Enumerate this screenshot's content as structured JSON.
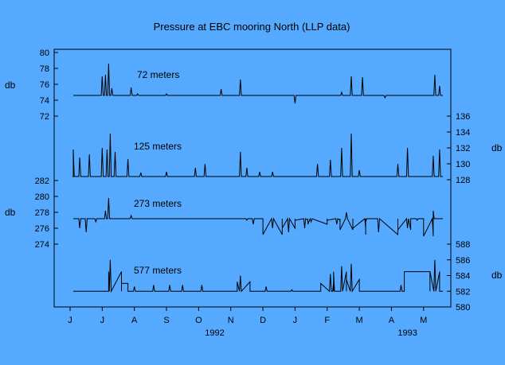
{
  "chart_data": {
    "type": "line",
    "title": "Pressure at EBC mooring North (LLP data)",
    "x_axis": {
      "tick_labels": [
        "J",
        "J",
        "A",
        "S",
        "O",
        "N",
        "D",
        "J",
        "F",
        "M",
        "A",
        "M"
      ],
      "year_labels": [
        {
          "label": "1992",
          "month_index": 4
        },
        {
          "label": "1993",
          "month_index": 10
        }
      ],
      "range_months": [
        0,
        11.7
      ]
    },
    "left_unit_labels": [
      "db",
      "db"
    ],
    "right_unit_labels": [
      "db",
      "db"
    ],
    "panels": [
      {
        "name": "72 meters",
        "axis_side": "left",
        "ticks": [
          80,
          78,
          76,
          74,
          72
        ],
        "tick_range": [
          72,
          80
        ],
        "baseline": 74.6,
        "spikes": [
          [
            1.0,
            77.0
          ],
          [
            1.1,
            77.2
          ],
          [
            1.2,
            78.6
          ],
          [
            1.3,
            75.5
          ],
          [
            1.9,
            75.6
          ],
          [
            2.1,
            74.8
          ],
          [
            3.0,
            74.8
          ],
          [
            4.7,
            75.4
          ],
          [
            5.3,
            76.6
          ],
          [
            7.0,
            73.6
          ],
          [
            8.45,
            75.0
          ],
          [
            8.75,
            77.0
          ],
          [
            9.1,
            76.9
          ],
          [
            9.8,
            74.3
          ],
          [
            11.35,
            77.2
          ],
          [
            11.5,
            75.8
          ]
        ],
        "steps": []
      },
      {
        "name": "125 meters",
        "axis_side": "right",
        "ticks": [
          136,
          134,
          132,
          130,
          128
        ],
        "tick_range": [
          128,
          136
        ],
        "baseline": 128.4,
        "spikes": [
          [
            0.1,
            131.8
          ],
          [
            0.3,
            130.8
          ],
          [
            0.6,
            131.2
          ],
          [
            1.0,
            132.0
          ],
          [
            1.15,
            131.8
          ],
          [
            1.25,
            133.8
          ],
          [
            1.4,
            131.5
          ],
          [
            1.8,
            130.6
          ],
          [
            2.2,
            128.9
          ],
          [
            3.0,
            129.0
          ],
          [
            3.9,
            129.5
          ],
          [
            4.2,
            130.0
          ],
          [
            5.3,
            131.5
          ],
          [
            5.5,
            129.5
          ],
          [
            5.9,
            129.0
          ],
          [
            6.3,
            129.0
          ],
          [
            7.7,
            130.0
          ],
          [
            8.1,
            130.5
          ],
          [
            8.45,
            132.0
          ],
          [
            8.75,
            133.8
          ],
          [
            9.0,
            129.2
          ],
          [
            10.2,
            130.0
          ],
          [
            10.5,
            132.0
          ],
          [
            11.3,
            131.0
          ],
          [
            11.5,
            131.8
          ]
        ],
        "steps": []
      },
      {
        "name": "273 meters",
        "axis_side": "left",
        "ticks": [
          282,
          280,
          278,
          276,
          274
        ],
        "tick_range": [
          274,
          282
        ],
        "baseline": 277.2,
        "spikes": [
          [
            0.3,
            276.0
          ],
          [
            0.5,
            275.5
          ],
          [
            0.8,
            276.8
          ],
          [
            1.1,
            278.2
          ],
          [
            1.2,
            279.8
          ],
          [
            1.9,
            277.6
          ],
          [
            5.5,
            277.0
          ],
          [
            5.7,
            276.5
          ],
          [
            6.3,
            276.0
          ],
          [
            6.8,
            275.5
          ],
          [
            7.3,
            276.0
          ],
          [
            7.5,
            276.8
          ],
          [
            8.3,
            276.5
          ],
          [
            8.6,
            278.0
          ],
          [
            9.2,
            276.8
          ],
          [
            9.6,
            275.5
          ],
          [
            10.5,
            276.0
          ],
          [
            10.8,
            277.0
          ],
          [
            11.3,
            278.2
          ]
        ],
        "steps": [
          [
            6.0,
            6.6,
            275.2
          ],
          [
            6.6,
            7.0,
            276.0
          ],
          [
            7.0,
            7.4,
            277.0
          ],
          [
            7.4,
            8.0,
            276.5
          ],
          [
            8.0,
            8.4,
            277.0
          ],
          [
            8.4,
            8.8,
            275.8
          ],
          [
            8.8,
            9.2,
            276.0
          ],
          [
            9.2,
            10.2,
            275.2
          ],
          [
            10.2,
            10.6,
            275.8
          ],
          [
            10.6,
            11.0,
            277.2
          ],
          [
            11.0,
            11.3,
            275.0
          ]
        ]
      },
      {
        "name": "577 meters",
        "axis_side": "right",
        "ticks": [
          588,
          586,
          584,
          582,
          580
        ],
        "tick_range": [
          580,
          588
        ],
        "baseline": 582.0,
        "spikes": [
          [
            1.25,
            586.0
          ],
          [
            2.0,
            582.6
          ],
          [
            2.6,
            582.8
          ],
          [
            3.1,
            582.8
          ],
          [
            3.5,
            582.8
          ],
          [
            4.1,
            582.8
          ],
          [
            5.3,
            584.0
          ],
          [
            6.1,
            582.6
          ],
          [
            6.9,
            582.2
          ],
          [
            8.1,
            584.2
          ],
          [
            8.2,
            584.4
          ],
          [
            8.45,
            585.2
          ],
          [
            8.75,
            585.5
          ],
          [
            10.3,
            582.8
          ],
          [
            11.35,
            586.0
          ]
        ],
        "steps": [
          [
            1.2,
            1.6,
            584.5
          ],
          [
            1.6,
            1.8,
            583.0
          ],
          [
            5.2,
            5.6,
            583.2
          ],
          [
            7.8,
            8.2,
            583.0
          ],
          [
            8.2,
            8.6,
            584.5
          ],
          [
            8.6,
            9.0,
            583.5
          ],
          [
            10.4,
            11.2,
            584.5
          ],
          [
            11.2,
            11.5,
            584.5
          ]
        ]
      }
    ],
    "grid": false,
    "legend": "none"
  }
}
